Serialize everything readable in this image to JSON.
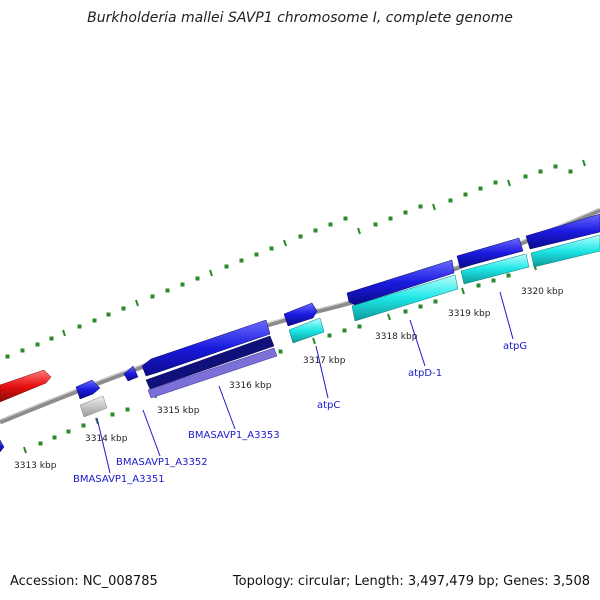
{
  "title": "Burkholderia mallei SAVP1 chromosome I, complete genome",
  "footer": {
    "accession": "Accession: NC_008785",
    "stats": "Topology: circular; Length: 3,497,479 bp; Genes: 3,508"
  },
  "colors": {
    "backbone": "#8c8c8c",
    "tick": "#2a8a2a",
    "gene_blue": "#1a1adf",
    "gene_cyan": "#1ee6e6",
    "gene_navy": "#10107a",
    "gene_violet": "#7b6fd8",
    "gene_red": "#e81010",
    "gene_gray": "#c4c4c4",
    "label_blue": "#1a1acc"
  },
  "scale_labels": [
    "3313 kbp",
    "3314 kbp",
    "3315 kbp",
    "3316 kbp",
    "3317 kbp",
    "3318 kbp",
    "3319 kbp",
    "3320 kbp"
  ],
  "gene_labels": [
    "BMASAVP1_A3351",
    "BMASAVP1_A3352",
    "BMASAVP1_A3353",
    "atpC",
    "atpD-1",
    "atpG"
  ]
}
